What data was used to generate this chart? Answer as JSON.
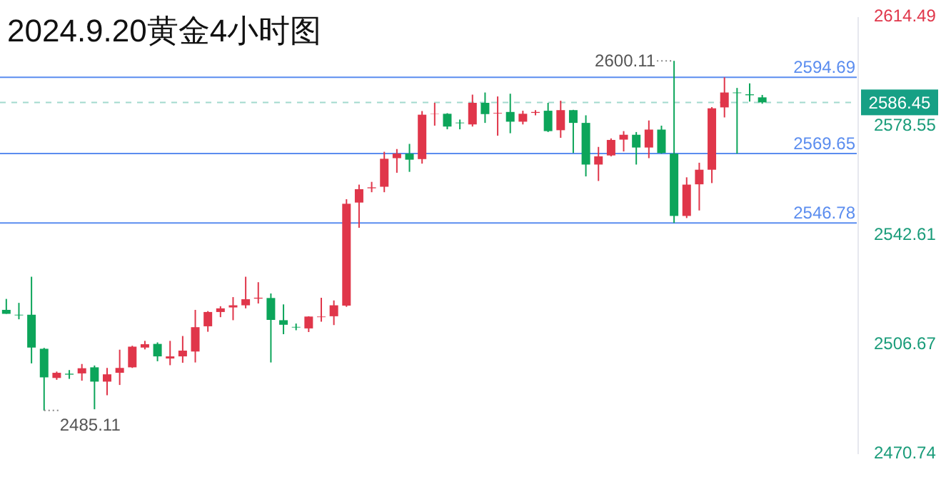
{
  "chart_data": {
    "type": "candlestick",
    "title": "2024.9.20黄金4小时图",
    "categories": [
      null,
      null,
      null,
      null,
      null,
      null,
      null,
      null,
      null,
      null,
      null,
      null,
      null,
      null,
      null,
      null,
      null,
      null,
      null,
      null,
      null,
      null,
      null,
      null,
      null,
      null,
      null,
      null,
      null,
      null,
      null,
      null,
      null,
      null,
      null,
      null,
      null,
      null,
      null,
      null,
      null,
      null,
      null,
      null,
      null,
      null,
      null,
      null,
      null,
      null,
      null,
      null,
      null,
      null,
      null,
      null,
      null,
      null,
      null,
      null,
      null,
      null,
      null,
      null,
      null,
      null,
      null,
      null
    ],
    "ohlc": [
      [
        2518.2,
        2521.8,
        2516.9,
        2516.9
      ],
      [
        2516.6,
        2520.5,
        2515.1,
        2516.4
      ],
      [
        2516.6,
        2529.1,
        2500.6,
        2505.8
      ],
      [
        2505.4,
        2505.7,
        2485.11,
        2496.0
      ],
      [
        2495.8,
        2497.9,
        2495.2,
        2497.5
      ],
      [
        2497.2,
        2498.4,
        2495.5,
        2496.9
      ],
      [
        2497.3,
        2500.4,
        2494.9,
        2499.0
      ],
      [
        2499.3,
        2499.9,
        2485.5,
        2494.6
      ],
      [
        2494.6,
        2499.1,
        2490.1,
        2497.0
      ],
      [
        2497.5,
        2505.1,
        2493.5,
        2499.1
      ],
      [
        2499.3,
        2506.4,
        2499.1,
        2506.1
      ],
      [
        2505.8,
        2508.0,
        2505.2,
        2506.9
      ],
      [
        2507.0,
        2507.5,
        2501.3,
        2502.9
      ],
      [
        2502.2,
        2508.0,
        2500.0,
        2502.9
      ],
      [
        2502.9,
        2509.6,
        2500.8,
        2504.8
      ],
      [
        2504.5,
        2518.2,
        2500.9,
        2512.5
      ],
      [
        2512.8,
        2517.8,
        2511.0,
        2517.5
      ],
      [
        2517.5,
        2519.4,
        2515.8,
        2518.7
      ],
      [
        2519.0,
        2522.4,
        2514.8,
        2519.7
      ],
      [
        2519.7,
        2529.1,
        2518.7,
        2521.7
      ],
      [
        2521.9,
        2527.3,
        2520.3,
        2522.2
      ],
      [
        2522.1,
        2523.6,
        2500.9,
        2514.9
      ],
      [
        2514.8,
        2520.0,
        2510.2,
        2513.3
      ],
      [
        2512.6,
        2513.7,
        2511.5,
        2512.4
      ],
      [
        2512.1,
        2516.1,
        2510.9,
        2516.0
      ],
      [
        2515.8,
        2522.2,
        2514.3,
        2516.0
      ],
      [
        2516.1,
        2521.3,
        2513.2,
        2519.7
      ],
      [
        2519.6,
        2554.6,
        2519.2,
        2553.1
      ],
      [
        2553.5,
        2559.4,
        2545.2,
        2557.9
      ],
      [
        2558.2,
        2560.3,
        2556.9,
        2558.5
      ],
      [
        2558.7,
        2570.2,
        2556.9,
        2567.9
      ],
      [
        2568.1,
        2571.1,
        2563.3,
        2569.6
      ],
      [
        2569.6,
        2572.8,
        2563.6,
        2567.6
      ],
      [
        2567.8,
        2583.6,
        2566.3,
        2582.4
      ],
      [
        2582.6,
        2586.3,
        2578.8,
        2582.7
      ],
      [
        2582.7,
        2582.9,
        2577.6,
        2578.5
      ],
      [
        2579.8,
        2580.8,
        2577.6,
        2579.6
      ],
      [
        2579.2,
        2589.0,
        2578.5,
        2586.3
      ],
      [
        2586.3,
        2589.7,
        2579.7,
        2582.6
      ],
      [
        2582.8,
        2588.4,
        2575.5,
        2583.0
      ],
      [
        2583.3,
        2589.3,
        2576.3,
        2580.1
      ],
      [
        2580.1,
        2583.7,
        2579.2,
        2582.7
      ],
      [
        2583.0,
        2583.9,
        2582.2,
        2583.3
      ],
      [
        2583.7,
        2586.3,
        2576.7,
        2577.0
      ],
      [
        2577.3,
        2587.0,
        2574.8,
        2583.9
      ],
      [
        2583.9,
        2584.0,
        2569.8,
        2579.7
      ],
      [
        2579.7,
        2582.2,
        2562.1,
        2566.0
      ],
      [
        2566.0,
        2571.8,
        2560.6,
        2568.7
      ],
      [
        2569.0,
        2574.6,
        2568.7,
        2574.1
      ],
      [
        2574.2,
        2577.0,
        2570.3,
        2575.8
      ],
      [
        2575.8,
        2576.7,
        2566.0,
        2571.6
      ],
      [
        2571.6,
        2580.5,
        2568.1,
        2577.5
      ],
      [
        2577.5,
        2578.8,
        2569.6,
        2569.8
      ],
      [
        2569.6,
        2600.11,
        2546.8,
        2549.1
      ],
      [
        2549.1,
        2561.8,
        2548.4,
        2559.4
      ],
      [
        2559.5,
        2566.6,
        2550.9,
        2564.3
      ],
      [
        2564.3,
        2584.9,
        2559.9,
        2584.5
      ],
      [
        2584.8,
        2594.7,
        2581.5,
        2589.7
      ],
      [
        2589.7,
        2591.2,
        2569.6,
        2589.5
      ],
      [
        2589.1,
        2592.7,
        2586.7,
        2588.8
      ],
      [
        2588.1,
        2588.9,
        2586.0,
        2586.45
      ],
      null,
      null,
      null,
      null,
      null,
      null,
      null
    ],
    "ylim": [
      2470.74,
      2614.49
    ],
    "yticks": [
      2614.49,
      2578.55,
      2542.61,
      2506.67,
      2470.74
    ],
    "ref_lines": [
      {
        "axis": "y",
        "value": 2594.69,
        "label": "2594.69",
        "color": "#5b8def"
      },
      {
        "axis": "y",
        "value": 2569.65,
        "label": "2569.65",
        "color": "#5b8def"
      },
      {
        "axis": "y",
        "value": 2546.78,
        "label": "2546.78",
        "color": "#5b8def"
      },
      {
        "axis": "y",
        "value": 2586.45,
        "label": "2586.45",
        "color": "#16a085",
        "line_style": "dashed"
      }
    ],
    "annotations": [
      "2600.11",
      "2485.11"
    ]
  }
}
